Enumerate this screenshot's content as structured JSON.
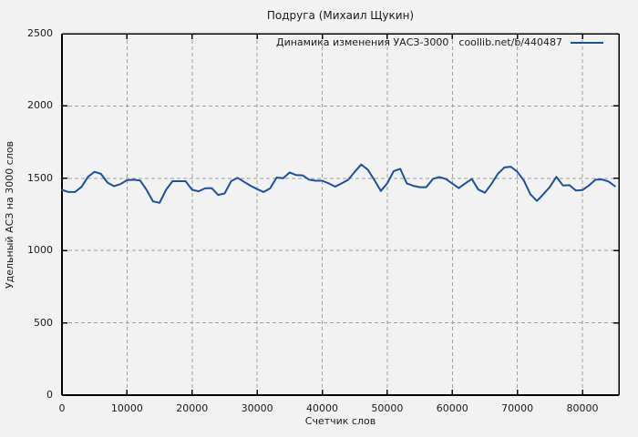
{
  "page_title": "Подруга (Михаил Щукин)",
  "legend": {
    "series_label": "Динамика изменения УАСЗ-3000",
    "source": "coollib.net/b/440487"
  },
  "chart_data": {
    "type": "line",
    "title": "Подруга (Михаил Щукин)",
    "xlabel": "Счетчик слов",
    "ylabel": "Удельный АСЗ на 3000 слов",
    "xlim": [
      0,
      85600
    ],
    "ylim": [
      0,
      2500
    ],
    "x_ticks": [
      0,
      10000,
      20000,
      30000,
      40000,
      50000,
      60000,
      70000,
      80000
    ],
    "y_ticks": [
      0,
      500,
      1000,
      1500,
      2000,
      2500
    ],
    "grid": "dashed",
    "legend_position": "top-right-inside",
    "colors": {
      "background": "#f2f2f2",
      "grid": "#9f9f9f",
      "border": "#000000",
      "line": "#1d4f9e",
      "text": "#1a1a1a"
    },
    "series": [
      {
        "name": "Динамика изменения УАСЗ-3000 coollib.net/b/440487",
        "x_start": 0,
        "x_step": 1000,
        "values": [
          1420,
          1405,
          1405,
          1440,
          1510,
          1545,
          1530,
          1470,
          1445,
          1460,
          1487,
          1490,
          1485,
          1420,
          1340,
          1330,
          1420,
          1480,
          1480,
          1480,
          1420,
          1410,
          1430,
          1432,
          1385,
          1395,
          1480,
          1503,
          1475,
          1448,
          1425,
          1405,
          1430,
          1505,
          1500,
          1540,
          1522,
          1520,
          1490,
          1483,
          1483,
          1465,
          1442,
          1465,
          1490,
          1545,
          1595,
          1560,
          1490,
          1412,
          1465,
          1550,
          1565,
          1465,
          1448,
          1438,
          1438,
          1495,
          1508,
          1495,
          1463,
          1432,
          1465,
          1495,
          1422,
          1400,
          1460,
          1530,
          1575,
          1580,
          1545,
          1484,
          1390,
          1343,
          1390,
          1440,
          1510,
          1450,
          1452,
          1415,
          1418,
          1450,
          1490,
          1492,
          1478,
          1445
        ]
      }
    ]
  }
}
